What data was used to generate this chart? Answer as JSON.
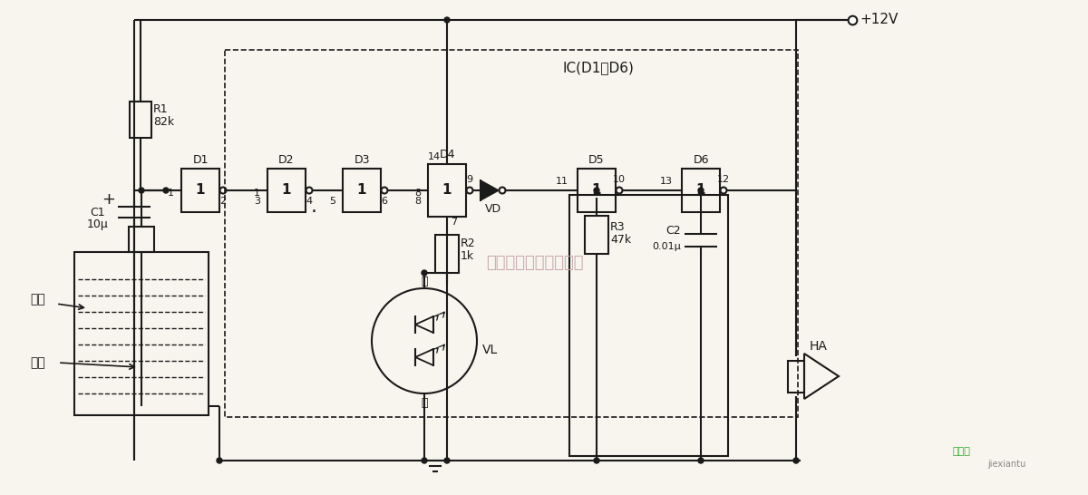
{
  "bg_color": "#f8f5ee",
  "line_color": "#1a1a1a",
  "text_color": "#1a1a1a",
  "watermark_color": "#c8a8a8",
  "ic_label": "IC(D1～D6)",
  "power_label": "+12V",
  "R1_label": "R1",
  "R1_val": "82k",
  "C1_label": "C1",
  "C1_val": "10μ",
  "R2_label": "R2",
  "R2_val": "1k",
  "R3_label": "R3",
  "R3_val": "47k",
  "C2_label": "C2",
  "C2_val": "0.01μ",
  "VD_label": "VD",
  "VL_label": "VL",
  "HA_label": "HA",
  "hong": "红",
  "lv": "绿",
  "shuixiang": "水筱",
  "dianji": "电极",
  "watermark": "杭州将睷科技有限公司",
  "logo1": "接线图",
  "logo2": "jiexiantu"
}
